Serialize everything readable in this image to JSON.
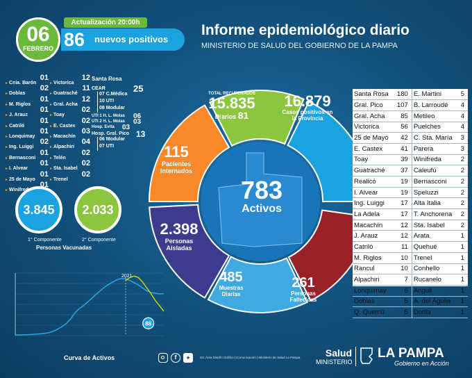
{
  "header": {
    "day": "06",
    "month": "FEBRERO",
    "update": "Actualización 20:00h",
    "positives_count": "86",
    "positives_label": "nuevos positivos",
    "title": "Informe epidemiológico diario",
    "subtitle": "MINISTERIO DE SALUD DEL GOBIERNO DE LA PAMPA"
  },
  "localities_col1": [
    {
      "name": "Cnia. Barón",
      "value": "01"
    },
    {
      "name": "Doblas",
      "value": "02"
    },
    {
      "name": "M. Riglos",
      "value": "01"
    },
    {
      "name": "J. Arauz",
      "value": "01"
    },
    {
      "name": "Catriló",
      "value": "01"
    },
    {
      "name": "Lonquimay",
      "value": "01"
    },
    {
      "name": "Ing. Luiggi",
      "value": "02"
    },
    {
      "name": "Bernasconi",
      "value": "01"
    },
    {
      "name": "I. Alvear",
      "value": "01"
    },
    {
      "name": "25 de Mayo",
      "value": "01"
    },
    {
      "name": "Winifreda",
      "value": "01"
    }
  ],
  "localities_col2": [
    {
      "name": "Victorica",
      "value": "12"
    },
    {
      "name": "Guatraché",
      "value": "11"
    },
    {
      "name": "Gral. Acha",
      "value": "12"
    },
    {
      "name": "Toay",
      "value": "02"
    },
    {
      "name": "E. Castex",
      "value": "02"
    },
    {
      "name": "Macachín",
      "value": "03"
    },
    {
      "name": "Alpachiri",
      "value": "04"
    },
    {
      "name": "Telén",
      "value": "02"
    },
    {
      "name": "Sta. Isabel",
      "value": "02"
    },
    {
      "name": "Trenel",
      "value": "02"
    }
  ],
  "santa_rosa": {
    "label": "Santa Rosa",
    "cear": "CEAR",
    "cear_value": "25",
    "rows": [
      {
        "value": "07",
        "label": "C.Médica"
      },
      {
        "value": "10",
        "label": "UTI"
      },
      {
        "value": "08",
        "label": "Modular"
      }
    ],
    "uti1": "UTI 1 H. L. Molas",
    "uti1_value": "06",
    "uti2": "UTI 2 H. L. Molas",
    "uti2_value": "03",
    "evita": "Hosp. Evita",
    "evita_value": "03"
  },
  "gral_pico": {
    "label": "Hosp. Gral. Pico",
    "value": "13",
    "rows": [
      {
        "value": "06",
        "label": "Modular"
      },
      {
        "value": "07",
        "label": "UTI"
      }
    ]
  },
  "vaccines": {
    "first_value": "3.845",
    "first_label": "1° Componente",
    "second_value": "2.033",
    "second_label": "2° Componente",
    "caption": "Personas Vacunadas"
  },
  "ring": {
    "recovered_label": "TOTAL RECUPERADOS",
    "recovered_value": "15.835",
    "recovered_daily_label": "Diarios",
    "recovered_daily_value": "81",
    "positives_value": "16.879",
    "positives_label": "Casos positivos en la Provincia",
    "hospitalized_value": "115",
    "hospitalized_label": "Pacientes Internados",
    "active_value": "783",
    "active_label": "Activos",
    "isolated_value": "2.398",
    "isolated_label": "Personas Aisladas",
    "samples_value": "485",
    "samples_label": "Muestras Diarias",
    "deceased_value": "261",
    "deceased_label": "Personas Fallecidas",
    "colors": {
      "recovered": "#8cc63f",
      "positives": "#1aa3e0",
      "hospitalized": "#f7892b",
      "isolated": "#3d3b8e",
      "samples": "#3fa9e0",
      "deceased": "#9b2128"
    }
  },
  "table": [
    [
      "Santa Rosa",
      "180",
      "E. Martini",
      "5"
    ],
    [
      "Gral. Pico",
      "107",
      "B. Larroudé",
      "4"
    ],
    [
      "Gral. Acha",
      "85",
      "Metileo",
      "4"
    ],
    [
      "Victorica",
      "56",
      "Puelches",
      "4"
    ],
    [
      "25 de Mayo",
      "42",
      "C. Sta. María",
      "3"
    ],
    [
      "E. Castex",
      "41",
      "Parera",
      "3"
    ],
    [
      "Toay",
      "39",
      "Winifreda",
      "2"
    ],
    [
      "Guatraché",
      "37",
      "Caleufú",
      "2"
    ],
    [
      "Realicó",
      "19",
      "Bernasconi",
      "2"
    ],
    [
      "I. Alvear",
      "19",
      "Speluzzi",
      "2"
    ],
    [
      "Ing. Luiggi",
      "17",
      "Alta Italia",
      "2"
    ],
    [
      "La Adela",
      "17",
      "T. Anchorena",
      "2"
    ],
    [
      "Macachín",
      "12",
      "Sta. Isabel",
      "2"
    ],
    [
      "J. Arauz",
      "12",
      "Arata",
      "1"
    ],
    [
      "Catriló",
      "11",
      "Quehué",
      "1"
    ],
    [
      "M. Riglos",
      "10",
      "Trenel",
      "1"
    ],
    [
      "Rancul",
      "10",
      "Conhello",
      "1"
    ],
    [
      "Alpachiri",
      "7",
      "Rucanelo",
      "1"
    ],
    [
      "Lonquimay",
      "6",
      "Anguil",
      "1"
    ],
    [
      "Doblas",
      "5",
      "A. del Águila",
      "1"
    ],
    [
      "Q. Quemú",
      "5",
      "Dorila",
      "1"
    ]
  ],
  "chart_data": {
    "type": "line",
    "title": "Curva de Activos",
    "annotations": [
      "2021",
      "86"
    ],
    "series": [
      {
        "color": "#2aa7e0",
        "values": [
          2,
          2,
          3,
          3,
          4,
          5,
          6,
          8,
          10,
          15,
          22,
          30,
          40,
          55,
          75,
          90,
          100,
          112,
          125,
          138,
          150,
          162,
          172,
          180,
          188,
          192,
          190,
          185,
          178,
          170,
          160,
          150,
          145,
          142,
          140,
          141
        ]
      },
      {
        "color": "#c8d400",
        "values": [
          null,
          null,
          null,
          null,
          null,
          null,
          null,
          null,
          null,
          null,
          null,
          null,
          null,
          null,
          null,
          null,
          null,
          null,
          null,
          null,
          null,
          null,
          null,
          null,
          null,
          null,
          185,
          195,
          200,
          195,
          180,
          160,
          140,
          118,
          100,
          82
        ]
      }
    ]
  },
  "footer": {
    "social": [
      "instagram-icon",
      "facebook-icon",
      "twitter-icon"
    ],
    "credits": "DG Área Diseño Gráfico | Comunicación | Ministerio de Salud La Pampa",
    "salud": "Salud",
    "ministerio": "MINISTERIO",
    "brand": "LA PAMPA",
    "slogan": "Gobierno en Acción"
  }
}
